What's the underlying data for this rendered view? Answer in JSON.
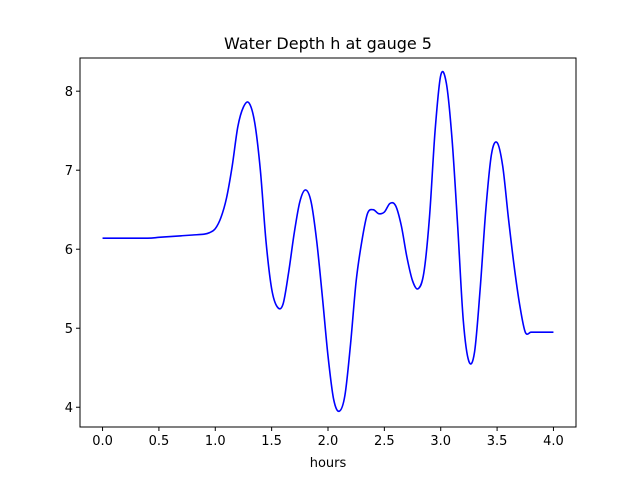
{
  "chart_data": {
    "type": "line",
    "title": "Water Depth h at gauge 5",
    "xlabel": "hours",
    "ylabel": "",
    "xlim": [
      -0.2,
      4.2
    ],
    "ylim": [
      3.75,
      8.42
    ],
    "grid": false,
    "x_ticks": [
      0.0,
      0.5,
      1.0,
      1.5,
      2.0,
      2.5,
      3.0,
      3.5,
      4.0
    ],
    "x_tick_labels": [
      "0.0",
      "0.5",
      "1.0",
      "1.5",
      "2.0",
      "2.5",
      "3.0",
      "3.5",
      "4.0"
    ],
    "y_ticks": [
      4,
      5,
      6,
      7,
      8
    ],
    "y_tick_labels": [
      "4",
      "5",
      "6",
      "7",
      "8"
    ],
    "series": [
      {
        "color": "#0000ff",
        "x": [
          0.0,
          0.2,
          0.4,
          0.5,
          0.6,
          0.7,
          0.8,
          0.9,
          0.95,
          1.0,
          1.05,
          1.1,
          1.15,
          1.2,
          1.25,
          1.3,
          1.35,
          1.4,
          1.45,
          1.5,
          1.55,
          1.6,
          1.65,
          1.7,
          1.75,
          1.8,
          1.85,
          1.9,
          1.95,
          2.0,
          2.05,
          2.1,
          2.15,
          2.2,
          2.25,
          2.3,
          2.35,
          2.4,
          2.45,
          2.5,
          2.55,
          2.6,
          2.65,
          2.7,
          2.75,
          2.8,
          2.85,
          2.9,
          2.95,
          3.0,
          3.05,
          3.1,
          3.15,
          3.2,
          3.25,
          3.3,
          3.35,
          3.4,
          3.45,
          3.5,
          3.55,
          3.6,
          3.65,
          3.7,
          3.75,
          3.8,
          3.85,
          3.9,
          3.95,
          4.0
        ],
        "y": [
          6.14,
          6.14,
          6.14,
          6.15,
          6.16,
          6.17,
          6.18,
          6.19,
          6.21,
          6.26,
          6.4,
          6.65,
          7.05,
          7.55,
          7.8,
          7.85,
          7.6,
          7.0,
          6.1,
          5.5,
          5.27,
          5.3,
          5.7,
          6.2,
          6.6,
          6.75,
          6.6,
          6.1,
          5.4,
          4.65,
          4.1,
          3.95,
          4.15,
          4.8,
          5.6,
          6.1,
          6.45,
          6.5,
          6.45,
          6.47,
          6.58,
          6.55,
          6.3,
          5.9,
          5.6,
          5.5,
          5.7,
          6.4,
          7.5,
          8.2,
          8.1,
          7.4,
          6.3,
          5.1,
          4.58,
          4.7,
          5.5,
          6.5,
          7.2,
          7.35,
          7.05,
          6.4,
          5.8,
          5.3,
          4.95,
          4.95,
          4.95,
          4.95,
          4.95,
          4.95
        ]
      }
    ]
  }
}
